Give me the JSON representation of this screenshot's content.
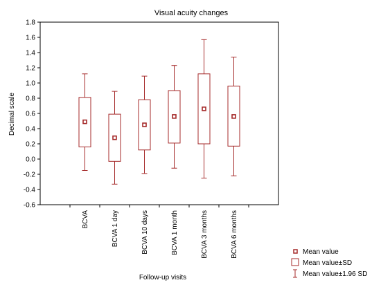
{
  "chart_data": {
    "type": "box",
    "title": "Visual acuity changes",
    "xlabel": "Follow-up visits",
    "ylabel": "Decimal scale",
    "ylim": [
      -0.6,
      1.8
    ],
    "yticks": [
      "-0.6",
      "-0.4",
      "-0.2",
      "0.0",
      "0.2",
      "0.4",
      "0.6",
      "0.8",
      "1.0",
      "1.2",
      "1.4",
      "1.6",
      "1.8"
    ],
    "categories": [
      "BCVA",
      "BCVA 1 day",
      "BCVA 10 days",
      "BCVA 1 month",
      "BCVA 3 months",
      "BCVA 6 months"
    ],
    "series": [
      {
        "category": "BCVA",
        "mean": 0.49,
        "sd_low": 0.16,
        "sd_high": 0.81,
        "ci_low": -0.15,
        "ci_high": 1.12
      },
      {
        "category": "BCVA 1 day",
        "mean": 0.28,
        "sd_low": -0.03,
        "sd_high": 0.59,
        "ci_low": -0.33,
        "ci_high": 0.89
      },
      {
        "category": "BCVA 10 days",
        "mean": 0.45,
        "sd_low": 0.12,
        "sd_high": 0.78,
        "ci_low": -0.19,
        "ci_high": 1.09
      },
      {
        "category": "BCVA 1 month",
        "mean": 0.56,
        "sd_low": 0.21,
        "sd_high": 0.9,
        "ci_low": -0.12,
        "ci_high": 1.23
      },
      {
        "category": "BCVA 3 months",
        "mean": 0.66,
        "sd_low": 0.2,
        "sd_high": 1.12,
        "ci_low": -0.25,
        "ci_high": 1.57
      },
      {
        "category": "BCVA 6 months",
        "mean": 0.56,
        "sd_low": 0.17,
        "sd_high": 0.96,
        "ci_low": -0.22,
        "ci_high": 1.34
      }
    ],
    "legend": {
      "placement": "bottom-right",
      "mean": "Mean value",
      "sd": "Mean value±SD",
      "ci": "Mean value±1.96 SD"
    },
    "grid": false,
    "colors": {
      "series": "#a52a2a",
      "frame": "#000000"
    }
  }
}
